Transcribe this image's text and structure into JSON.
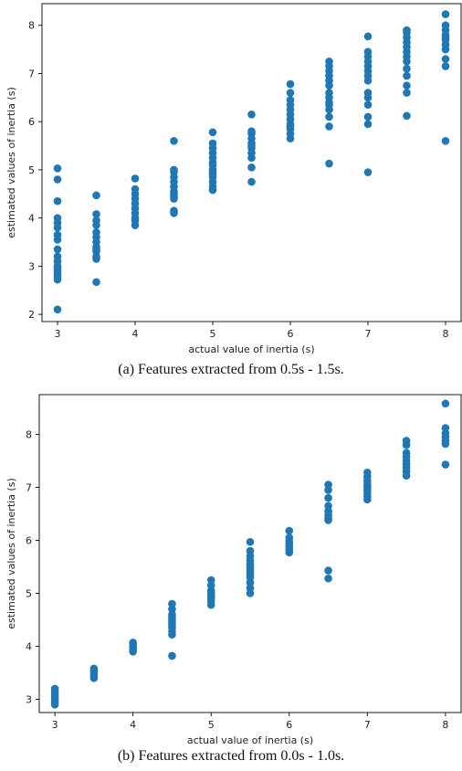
{
  "figure": {
    "captions": [
      "(a) Features extracted from 0.5s - 1.5s.",
      "(b) Features extracted from 0.0s - 1.0s."
    ]
  },
  "colors": {
    "marker": "#1f77b4",
    "axis": "#000000"
  },
  "chart_data": [
    {
      "type": "scatter",
      "title": "",
      "xlabel": "actual value of inertia (s)",
      "ylabel": "estimated values of inertia (s)",
      "xlim": [
        2.8,
        8.2
      ],
      "ylim": [
        1.85,
        8.45
      ],
      "xticks": [
        3,
        4,
        5,
        6,
        7,
        8
      ],
      "yticks": [
        2,
        3,
        4,
        5,
        6,
        7,
        8
      ],
      "grid": false,
      "series": [
        {
          "points": [
            [
              3,
              5.03
            ],
            [
              3,
              4.8
            ],
            [
              3,
              4.35
            ],
            [
              3,
              4.0
            ],
            [
              3,
              3.9
            ],
            [
              3,
              3.8
            ],
            [
              3,
              3.65
            ],
            [
              3,
              3.55
            ],
            [
              3,
              3.35
            ],
            [
              3,
              3.2
            ],
            [
              3,
              3.1
            ],
            [
              3,
              3.0
            ],
            [
              3,
              2.95
            ],
            [
              3,
              2.9
            ],
            [
              3,
              2.85
            ],
            [
              3,
              2.78
            ],
            [
              3,
              2.72
            ],
            [
              3,
              2.1
            ],
            [
              3.5,
              4.47
            ],
            [
              3.5,
              4.08
            ],
            [
              3.5,
              3.95
            ],
            [
              3.5,
              3.85
            ],
            [
              3.5,
              3.7
            ],
            [
              3.5,
              3.6
            ],
            [
              3.5,
              3.5
            ],
            [
              3.5,
              3.4
            ],
            [
              3.5,
              3.35
            ],
            [
              3.5,
              3.3
            ],
            [
              3.5,
              3.2
            ],
            [
              3.5,
              3.15
            ],
            [
              3.5,
              2.67
            ],
            [
              4,
              4.82
            ],
            [
              4,
              4.6
            ],
            [
              4,
              4.5
            ],
            [
              4,
              4.4
            ],
            [
              4,
              4.3
            ],
            [
              4,
              4.2
            ],
            [
              4,
              4.1
            ],
            [
              4,
              4.0
            ],
            [
              4,
              3.95
            ],
            [
              4,
              3.85
            ],
            [
              4.5,
              5.6
            ],
            [
              4.5,
              5.0
            ],
            [
              4.5,
              4.95
            ],
            [
              4.5,
              4.85
            ],
            [
              4.5,
              4.75
            ],
            [
              4.5,
              4.65
            ],
            [
              4.5,
              4.55
            ],
            [
              4.5,
              4.5
            ],
            [
              4.5,
              4.45
            ],
            [
              4.5,
              4.4
            ],
            [
              4.5,
              4.15
            ],
            [
              4.5,
              4.1
            ],
            [
              5,
              5.78
            ],
            [
              5,
              5.55
            ],
            [
              5,
              5.45
            ],
            [
              5,
              5.35
            ],
            [
              5,
              5.25
            ],
            [
              5,
              5.15
            ],
            [
              5,
              5.1
            ],
            [
              5,
              5.0
            ],
            [
              5,
              4.95
            ],
            [
              5,
              4.9
            ],
            [
              5,
              4.85
            ],
            [
              5,
              4.75
            ],
            [
              5,
              4.65
            ],
            [
              5,
              4.58
            ],
            [
              5.5,
              6.15
            ],
            [
              5.5,
              5.8
            ],
            [
              5.5,
              5.75
            ],
            [
              5.5,
              5.65
            ],
            [
              5.5,
              5.55
            ],
            [
              5.5,
              5.5
            ],
            [
              5.5,
              5.45
            ],
            [
              5.5,
              5.35
            ],
            [
              5.5,
              5.25
            ],
            [
              5.5,
              5.05
            ],
            [
              5.5,
              4.75
            ],
            [
              6,
              6.78
            ],
            [
              6,
              6.6
            ],
            [
              6,
              6.45
            ],
            [
              6,
              6.35
            ],
            [
              6,
              6.25
            ],
            [
              6,
              6.15
            ],
            [
              6,
              6.05
            ],
            [
              6,
              5.95
            ],
            [
              6,
              5.9
            ],
            [
              6,
              5.85
            ],
            [
              6,
              5.75
            ],
            [
              6,
              5.65
            ],
            [
              6.5,
              7.25
            ],
            [
              6.5,
              7.15
            ],
            [
              6.5,
              7.05
            ],
            [
              6.5,
              6.95
            ],
            [
              6.5,
              6.85
            ],
            [
              6.5,
              6.75
            ],
            [
              6.5,
              6.6
            ],
            [
              6.5,
              6.5
            ],
            [
              6.5,
              6.4
            ],
            [
              6.5,
              6.35
            ],
            [
              6.5,
              6.25
            ],
            [
              6.5,
              6.1
            ],
            [
              6.5,
              5.9
            ],
            [
              6.5,
              5.13
            ],
            [
              7,
              7.77
            ],
            [
              7,
              7.45
            ],
            [
              7,
              7.35
            ],
            [
              7,
              7.25
            ],
            [
              7,
              7.15
            ],
            [
              7,
              7.05
            ],
            [
              7,
              6.95
            ],
            [
              7,
              6.85
            ],
            [
              7,
              6.6
            ],
            [
              7,
              6.5
            ],
            [
              7,
              6.35
            ],
            [
              7,
              6.1
            ],
            [
              7,
              5.95
            ],
            [
              7,
              4.95
            ],
            [
              7.5,
              7.9
            ],
            [
              7.5,
              7.85
            ],
            [
              7.5,
              7.75
            ],
            [
              7.5,
              7.65
            ],
            [
              7.5,
              7.55
            ],
            [
              7.5,
              7.45
            ],
            [
              7.5,
              7.35
            ],
            [
              7.5,
              7.25
            ],
            [
              7.5,
              7.1
            ],
            [
              7.5,
              6.95
            ],
            [
              7.5,
              6.75
            ],
            [
              7.5,
              6.6
            ],
            [
              7.5,
              6.12
            ],
            [
              8,
              8.23
            ],
            [
              8,
              8.0
            ],
            [
              8,
              7.9
            ],
            [
              8,
              7.8
            ],
            [
              8,
              7.75
            ],
            [
              8,
              7.7
            ],
            [
              8,
              7.6
            ],
            [
              8,
              7.5
            ],
            [
              8,
              7.3
            ],
            [
              8,
              7.15
            ],
            [
              8,
              5.6
            ]
          ]
        }
      ]
    },
    {
      "type": "scatter",
      "title": "",
      "xlabel": "actual value of inertia (s)",
      "ylabel": "estimated values of inertia (s)",
      "xlim": [
        2.8,
        8.2
      ],
      "ylim": [
        2.75,
        8.75
      ],
      "xticks": [
        3,
        4,
        5,
        6,
        7,
        8
      ],
      "yticks": [
        3,
        4,
        5,
        6,
        7,
        8
      ],
      "grid": false,
      "series": [
        {
          "points": [
            [
              3,
              3.2
            ],
            [
              3,
              3.15
            ],
            [
              3,
              3.1
            ],
            [
              3,
              3.05
            ],
            [
              3,
              3.0
            ],
            [
              3,
              2.95
            ],
            [
              3,
              2.9
            ],
            [
              3.5,
              3.58
            ],
            [
              3.5,
              3.53
            ],
            [
              3.5,
              3.48
            ],
            [
              3.5,
              3.43
            ],
            [
              3.5,
              3.4
            ],
            [
              4,
              4.07
            ],
            [
              4,
              4.02
            ],
            [
              4,
              3.97
            ],
            [
              4,
              3.93
            ],
            [
              4,
              3.9
            ],
            [
              4.5,
              4.8
            ],
            [
              4.5,
              4.7
            ],
            [
              4.5,
              4.6
            ],
            [
              4.5,
              4.55
            ],
            [
              4.5,
              4.5
            ],
            [
              4.5,
              4.45
            ],
            [
              4.5,
              4.4
            ],
            [
              4.5,
              4.35
            ],
            [
              4.5,
              4.28
            ],
            [
              4.5,
              4.22
            ],
            [
              4.5,
              3.82
            ],
            [
              5,
              5.25
            ],
            [
              5,
              5.15
            ],
            [
              5,
              5.05
            ],
            [
              5,
              5.0
            ],
            [
              5,
              4.95
            ],
            [
              5,
              4.9
            ],
            [
              5,
              4.85
            ],
            [
              5,
              4.78
            ],
            [
              5.5,
              5.97
            ],
            [
              5.5,
              5.8
            ],
            [
              5.5,
              5.7
            ],
            [
              5.5,
              5.62
            ],
            [
              5.5,
              5.55
            ],
            [
              5.5,
              5.5
            ],
            [
              5.5,
              5.45
            ],
            [
              5.5,
              5.4
            ],
            [
              5.5,
              5.35
            ],
            [
              5.5,
              5.3
            ],
            [
              5.5,
              5.2
            ],
            [
              5.5,
              5.1
            ],
            [
              5.5,
              5.0
            ],
            [
              6,
              6.18
            ],
            [
              6,
              6.05
            ],
            [
              6,
              5.98
            ],
            [
              6,
              5.93
            ],
            [
              6,
              5.88
            ],
            [
              6,
              5.82
            ],
            [
              6,
              5.77
            ],
            [
              6.5,
              7.05
            ],
            [
              6.5,
              6.95
            ],
            [
              6.5,
              6.8
            ],
            [
              6.5,
              6.65
            ],
            [
              6.5,
              6.55
            ],
            [
              6.5,
              6.48
            ],
            [
              6.5,
              6.42
            ],
            [
              6.5,
              6.38
            ],
            [
              6.5,
              5.43
            ],
            [
              6.5,
              5.28
            ],
            [
              7,
              7.28
            ],
            [
              7,
              7.2
            ],
            [
              7,
              7.12
            ],
            [
              7,
              7.05
            ],
            [
              7,
              7.0
            ],
            [
              7,
              6.95
            ],
            [
              7,
              6.9
            ],
            [
              7,
              6.83
            ],
            [
              7,
              6.77
            ],
            [
              7.5,
              7.88
            ],
            [
              7.5,
              7.8
            ],
            [
              7.5,
              7.65
            ],
            [
              7.5,
              7.58
            ],
            [
              7.5,
              7.5
            ],
            [
              7.5,
              7.43
            ],
            [
              7.5,
              7.37
            ],
            [
              7.5,
              7.3
            ],
            [
              7.5,
              7.22
            ],
            [
              8,
              8.58
            ],
            [
              8,
              8.12
            ],
            [
              8,
              8.02
            ],
            [
              8,
              7.95
            ],
            [
              8,
              7.88
            ],
            [
              8,
              7.82
            ],
            [
              8,
              7.43
            ]
          ]
        }
      ]
    }
  ]
}
